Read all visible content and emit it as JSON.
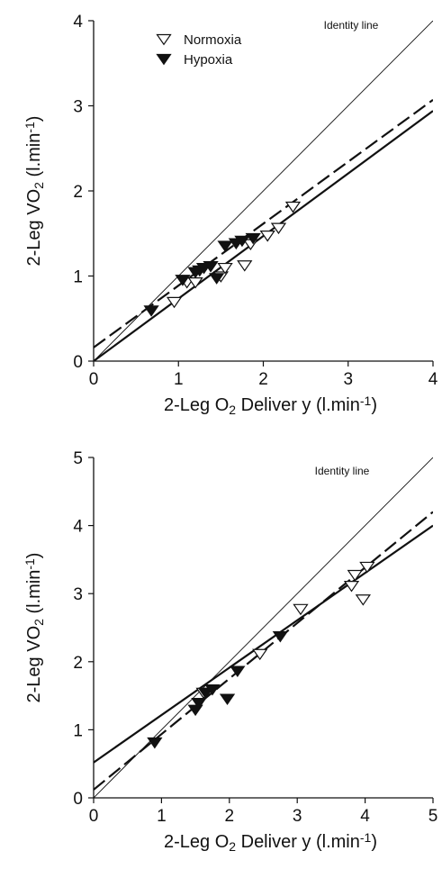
{
  "chart_data": [
    {
      "type": "scatter",
      "xlabel": "2-Leg O₂ Deliver y (l.min⁻¹)",
      "ylabel": "2-Leg VO₂ (l.min⁻¹)",
      "xlim": [
        0,
        4
      ],
      "ylim": [
        0,
        4
      ],
      "xticks": [
        "0",
        "1",
        "2",
        "3",
        "4"
      ],
      "yticks": [
        "0",
        "1",
        "2",
        "3",
        "4"
      ],
      "grid": false,
      "legend_position": "top-left",
      "identity_label": "Identity line",
      "series": [
        {
          "name": "Normoxia",
          "marker": "open-down-triangle",
          "points": [
            [
              0.95,
              0.7
            ],
            [
              1.1,
              0.93
            ],
            [
              1.2,
              0.93
            ],
            [
              1.5,
              1.0
            ],
            [
              1.55,
              1.1
            ],
            [
              1.78,
              1.13
            ],
            [
              1.85,
              1.38
            ],
            [
              2.05,
              1.48
            ],
            [
              2.18,
              1.57
            ],
            [
              2.35,
              1.82
            ]
          ]
        },
        {
          "name": "Hypoxia",
          "marker": "filled-down-triangle",
          "points": [
            [
              0.68,
              0.6
            ],
            [
              1.05,
              0.96
            ],
            [
              1.2,
              1.05
            ],
            [
              1.25,
              1.07
            ],
            [
              1.3,
              1.1
            ],
            [
              1.38,
              1.12
            ],
            [
              1.45,
              0.98
            ],
            [
              1.55,
              1.36
            ],
            [
              1.68,
              1.39
            ],
            [
              1.75,
              1.42
            ],
            [
              1.88,
              1.45
            ]
          ]
        }
      ],
      "lines": [
        {
          "name": "Identity line",
          "style": "thin",
          "x": [
            0,
            4
          ],
          "y": [
            0,
            4
          ]
        },
        {
          "name": "Normoxia fit",
          "style": "dashed",
          "x": [
            0,
            4
          ],
          "y": [
            0.16,
            3.07
          ]
        },
        {
          "name": "Hypoxia fit",
          "style": "solid",
          "x": [
            0,
            4
          ],
          "y": [
            0.0,
            2.94
          ]
        }
      ]
    },
    {
      "type": "scatter",
      "xlabel": "2-Leg O₂ Deliver y (l.min⁻¹)",
      "ylabel": "2-Leg VO₂ (l.min⁻¹)",
      "xlim": [
        0,
        5
      ],
      "ylim": [
        0,
        5
      ],
      "xticks": [
        "0",
        "1",
        "2",
        "3",
        "4",
        "5"
      ],
      "yticks": [
        "0",
        "1",
        "2",
        "3",
        "4",
        "5"
      ],
      "grid": false,
      "identity_label": "Identity line",
      "series": [
        {
          "name": "Normoxia",
          "marker": "open-down-triangle",
          "points": [
            [
              1.62,
              1.55
            ],
            [
              2.45,
              2.12
            ],
            [
              3.05,
              2.78
            ],
            [
              3.8,
              3.12
            ],
            [
              3.85,
              3.28
            ],
            [
              3.97,
              2.92
            ],
            [
              4.03,
              3.4
            ]
          ]
        },
        {
          "name": "Hypoxia",
          "marker": "filled-down-triangle",
          "points": [
            [
              0.9,
              0.82
            ],
            [
              1.5,
              1.3
            ],
            [
              1.55,
              1.4
            ],
            [
              1.65,
              1.55
            ],
            [
              1.75,
              1.6
            ],
            [
              1.97,
              1.46
            ],
            [
              2.12,
              1.87
            ],
            [
              2.75,
              2.38
            ]
          ]
        }
      ],
      "lines": [
        {
          "name": "Identity line",
          "style": "thin",
          "x": [
            0,
            5
          ],
          "y": [
            0,
            5
          ]
        },
        {
          "name": "Normoxia fit",
          "style": "dashed",
          "x": [
            0,
            5
          ],
          "y": [
            0.12,
            4.2
          ]
        },
        {
          "name": "Hypoxia fit",
          "style": "solid",
          "x": [
            0,
            5
          ],
          "y": [
            0.52,
            4.0
          ]
        }
      ]
    }
  ]
}
